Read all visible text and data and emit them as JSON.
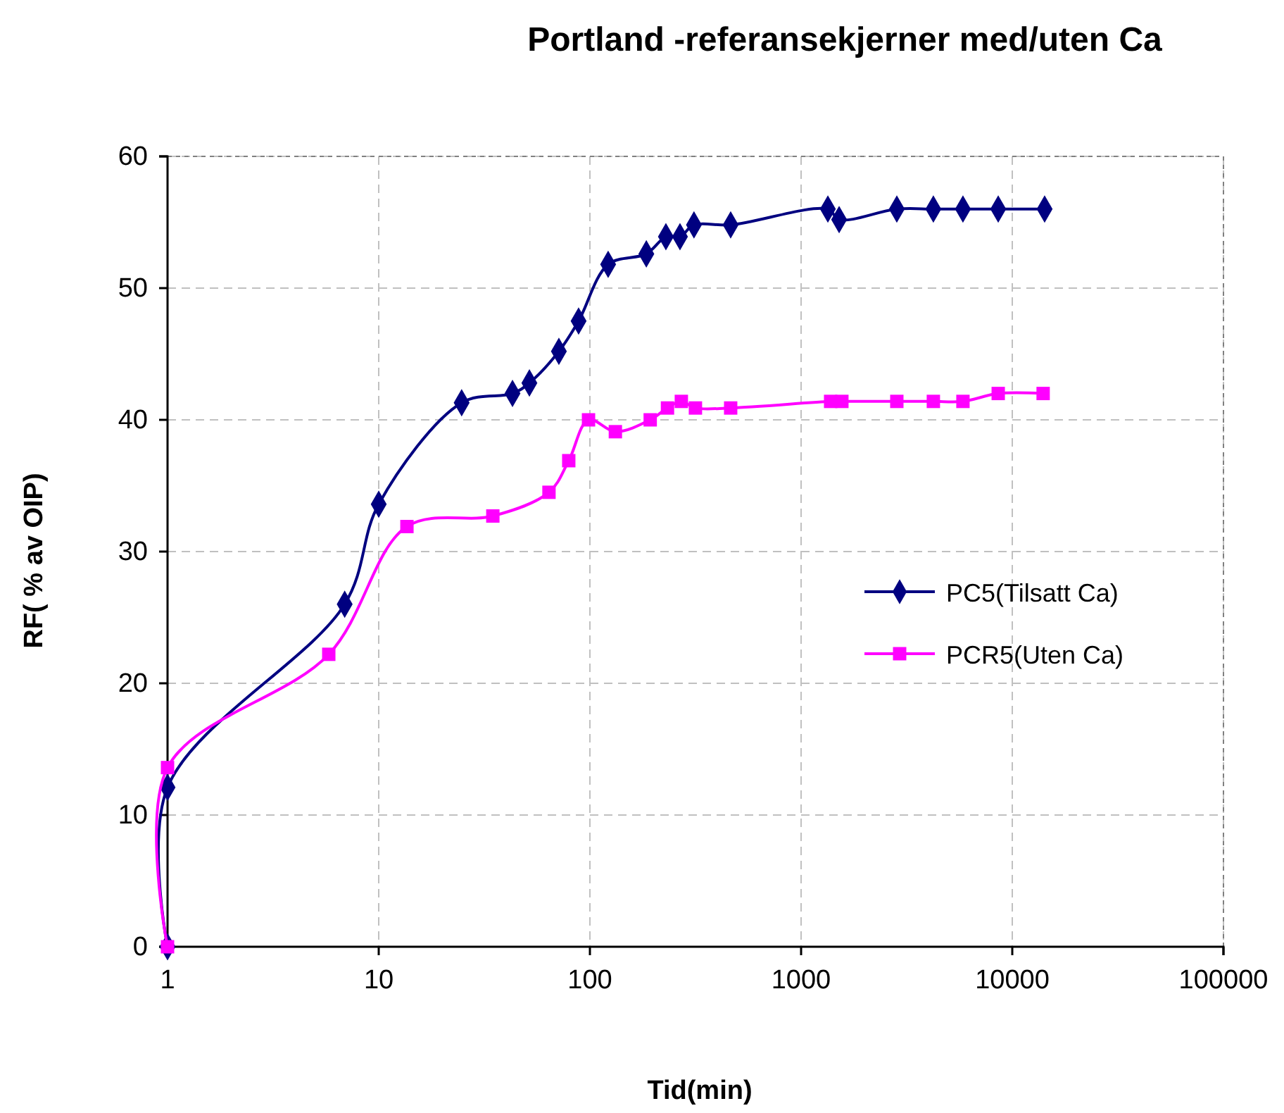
{
  "chart_data": {
    "type": "line",
    "title": "Portland -referansekjerner med/uten Ca",
    "xlabel": "Tid(min)",
    "ylabel": "RF( % av OIP)",
    "log": "x",
    "xlim": [
      1,
      100000
    ],
    "xticks": [
      1,
      10,
      100,
      1000,
      10000,
      100000
    ],
    "ylim": [
      0,
      60
    ],
    "yticks": [
      0,
      10,
      20,
      30,
      40,
      50,
      60
    ],
    "grid": true,
    "legend": "right",
    "series": [
      {
        "name": "PC5(Tilsatt Ca)",
        "color": "#000080",
        "marker": "diamond",
        "x": [
          1,
          1,
          6.9,
          10,
          24.7,
          43,
          51.7,
          71.3,
          88.4,
          122,
          185,
          229,
          267,
          311,
          464,
          1339,
          1514,
          2840,
          4230,
          5840,
          8580,
          14230
        ],
        "values": [
          0,
          12.1,
          26,
          33.6,
          41.3,
          42,
          42.8,
          45.2,
          47.5,
          51.8,
          52.6,
          53.9,
          53.9,
          54.8,
          54.8,
          56,
          55.2,
          56,
          56,
          56,
          56,
          56
        ]
      },
      {
        "name": "PCR5(Uten Ca)",
        "color": "#ff00ff",
        "marker": "square",
        "x": [
          1,
          1,
          5.8,
          13.6,
          34.7,
          64,
          79.4,
          98.5,
          132,
          193,
          233,
          271,
          316,
          464,
          1380,
          1560,
          2840,
          4230,
          5840,
          8580,
          14000
        ],
        "values": [
          0,
          13.6,
          22.2,
          31.9,
          32.7,
          34.5,
          36.9,
          40,
          39.1,
          40,
          40.9,
          41.4,
          40.9,
          40.9,
          41.4,
          41.4,
          41.4,
          41.4,
          41.4,
          42,
          42
        ]
      }
    ]
  }
}
